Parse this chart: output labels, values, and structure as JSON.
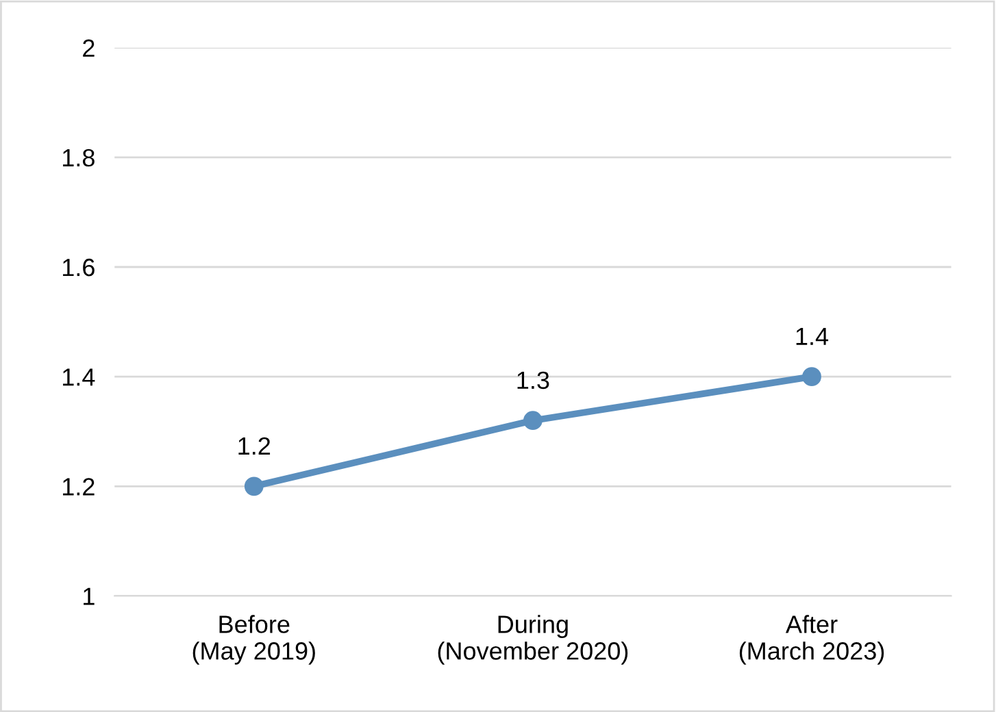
{
  "chart_data": {
    "type": "line",
    "categories": [
      "Before\n(May 2019)",
      "During\n(November 2020)",
      "After\n(March 2023)"
    ],
    "series": [
      {
        "color": "#5b8fbe",
        "values": [
          1.2,
          1.32,
          1.4
        ],
        "value_labels": [
          "1.2",
          "1.3",
          "1.4"
        ]
      }
    ],
    "ylim": [
      1,
      2
    ],
    "yticks": [
      1,
      1.2,
      1.4,
      1.6,
      1.8,
      2
    ],
    "grid": "y",
    "marker": "circle",
    "line_style": "solid",
    "legend": false
  }
}
